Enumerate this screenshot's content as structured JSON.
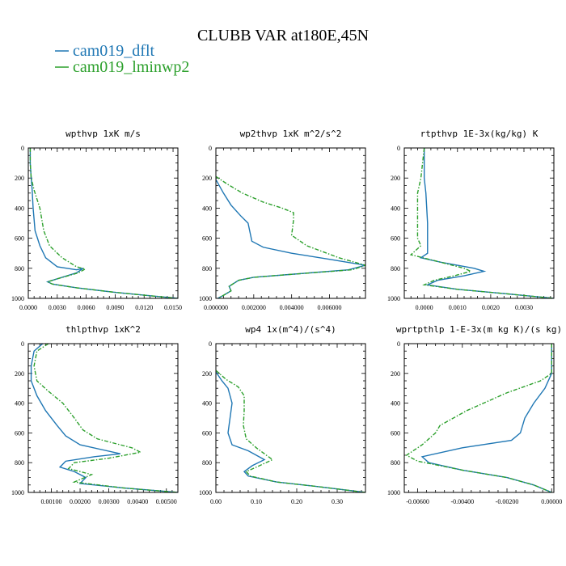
{
  "figure": {
    "title": "CLUBB VAR at180E,45N",
    "legend": [
      {
        "name": "cam019_dflt",
        "color": "#1f77b4",
        "dash": "solid"
      },
      {
        "name": "cam019_lminwp2",
        "color": "#2ca02c",
        "dash": "dashdot"
      }
    ]
  },
  "chart_data": [
    {
      "type": "line",
      "title": "wpthvp   1xK m/s",
      "xlim": [
        0,
        0.0155
      ],
      "ylim": [
        1000,
        0
      ],
      "xticks": [
        0,
        0.003,
        0.006,
        0.009,
        0.012,
        0.015
      ],
      "xticklabels": [
        "0.0000",
        "0.0030",
        "0.0060",
        "0.0090",
        "0.0120",
        "0.0150"
      ],
      "yticks": [
        0,
        200,
        400,
        600,
        800,
        1000
      ],
      "yticklabels": [
        "0",
        "200",
        "400",
        "600",
        "800",
        "1000"
      ],
      "series": [
        {
          "name": "cam019_dflt",
          "points": [
            [
              0.0002,
              0
            ],
            [
              0.0002,
              100
            ],
            [
              0.0003,
              200
            ],
            [
              0.0004,
              280
            ],
            [
              0.0005,
              400
            ],
            [
              0.0007,
              550
            ],
            [
              0.0012,
              650
            ],
            [
              0.0018,
              730
            ],
            [
              0.003,
              790
            ],
            [
              0.005,
              810
            ],
            [
              0.0057,
              800
            ],
            [
              0.005,
              830
            ],
            [
              0.003,
              870
            ],
            [
              0.002,
              890
            ],
            [
              0.0025,
              905
            ],
            [
              0.005,
              930
            ],
            [
              0.009,
              960
            ],
            [
              0.013,
              985
            ],
            [
              0.0155,
              1000
            ]
          ]
        },
        {
          "name": "cam019_lminwp2",
          "points": [
            [
              0.0002,
              0
            ],
            [
              0.0002,
              100
            ],
            [
              0.0003,
              200
            ],
            [
              0.0006,
              280
            ],
            [
              0.0012,
              400
            ],
            [
              0.0016,
              550
            ],
            [
              0.0022,
              650
            ],
            [
              0.0035,
              730
            ],
            [
              0.005,
              790
            ],
            [
              0.0059,
              805
            ],
            [
              0.0052,
              830
            ],
            [
              0.003,
              870
            ],
            [
              0.002,
              890
            ],
            [
              0.0025,
              905
            ],
            [
              0.005,
              930
            ],
            [
              0.009,
              960
            ],
            [
              0.013,
              985
            ],
            [
              0.0155,
              1000
            ]
          ]
        }
      ]
    },
    {
      "type": "line",
      "title": "wp2thvp   1xK m^2/s^2",
      "xlim": [
        0,
        0.0079
      ],
      "ylim": [
        1000,
        0
      ],
      "xticks": [
        0,
        0.002,
        0.004,
        0.006
      ],
      "xticklabels": [
        "0.000000",
        "0.002000",
        "0.004000",
        "0.006000"
      ],
      "yticks": [
        0,
        200,
        400,
        600,
        800,
        1000
      ],
      "yticklabels": [
        "0",
        "200",
        "400",
        "600",
        "800",
        "1000"
      ],
      "series": [
        {
          "name": "cam019_dflt",
          "points": [
            [
              0,
              210
            ],
            [
              0.0004,
              300
            ],
            [
              0.0008,
              380
            ],
            [
              0.0013,
              450
            ],
            [
              0.0017,
              500
            ],
            [
              0.0018,
              560
            ],
            [
              0.0019,
              620
            ],
            [
              0.0025,
              660
            ],
            [
              0.004,
              700
            ],
            [
              0.006,
              740
            ],
            [
              0.0079,
              780
            ],
            [
              0.007,
              810
            ],
            [
              0.004,
              840
            ],
            [
              0.002,
              860
            ],
            [
              0.0012,
              880
            ],
            [
              0.0007,
              920
            ],
            [
              0.0008,
              950
            ],
            [
              0.0004,
              980
            ],
            [
              0.0001,
              1000
            ]
          ]
        },
        {
          "name": "cam019_lminwp2",
          "points": [
            [
              0,
              190
            ],
            [
              0.0006,
              240
            ],
            [
              0.0014,
              300
            ],
            [
              0.0025,
              360
            ],
            [
              0.0035,
              400
            ],
            [
              0.0041,
              430
            ],
            [
              0.0041,
              480
            ],
            [
              0.004,
              580
            ],
            [
              0.0048,
              650
            ],
            [
              0.0065,
              730
            ],
            [
              0.0079,
              780
            ],
            [
              0.0072,
              810
            ],
            [
              0.004,
              840
            ],
            [
              0.002,
              860
            ],
            [
              0.0012,
              880
            ],
            [
              0.0007,
              920
            ],
            [
              0.0008,
              950
            ],
            [
              0.0004,
              980
            ],
            [
              0.0001,
              1000
            ]
          ]
        }
      ]
    },
    {
      "type": "line",
      "title": "rtpthvp   1E-3x(kg/kg) K",
      "xlim": [
        -0.0006,
        0.0039
      ],
      "ylim": [
        1000,
        0
      ],
      "xticks": [
        0,
        0.001,
        0.002,
        0.003
      ],
      "xticklabels": [
        "0.0000",
        "0.0010",
        "0.0020",
        "0.0030"
      ],
      "yticks": [
        0,
        200,
        400,
        600,
        800,
        1000
      ],
      "yticklabels": [
        "0",
        "200",
        "400",
        "600",
        "800",
        "1000"
      ],
      "series": [
        {
          "name": "cam019_dflt",
          "points": [
            [
              0,
              0
            ],
            [
              0,
              200
            ],
            [
              5e-05,
              300
            ],
            [
              0.0001,
              500
            ],
            [
              0.0001,
              650
            ],
            [
              0.0001,
              700
            ],
            [
              -0.0001,
              730
            ],
            [
              0.0005,
              760
            ],
            [
              0.0015,
              800
            ],
            [
              0.0018,
              820
            ],
            [
              0.0012,
              850
            ],
            [
              0.0004,
              880
            ],
            [
              0.0001,
              910
            ],
            [
              0.001,
              940
            ],
            [
              0.0025,
              970
            ],
            [
              0.0039,
              1000
            ]
          ]
        },
        {
          "name": "cam019_lminwp2",
          "points": [
            [
              0,
              0
            ],
            [
              -0.0001,
              200
            ],
            [
              -0.0002,
              300
            ],
            [
              -0.0002,
              400
            ],
            [
              -0.0002,
              500
            ],
            [
              -0.0002,
              600
            ],
            [
              -0.0001,
              650
            ],
            [
              -0.0004,
              710
            ],
            [
              0.0005,
              760
            ],
            [
              0.0012,
              800
            ],
            [
              0.0014,
              820
            ],
            [
              0.0009,
              850
            ],
            [
              0.0003,
              880
            ],
            [
              0,
              910
            ],
            [
              0.001,
              940
            ],
            [
              0.0025,
              970
            ],
            [
              0.0039,
              1000
            ]
          ]
        }
      ]
    },
    {
      "type": "line",
      "title": "thlpthvp   1xK^2",
      "xlim": [
        0.0002,
        0.0054
      ],
      "ylim": [
        1000,
        0
      ],
      "xticks": [
        0.001,
        0.002,
        0.003,
        0.004,
        0.005
      ],
      "xticklabels": [
        "0.00100",
        "0.00200",
        "0.00300",
        "0.00400",
        "0.00500"
      ],
      "yticks": [
        0,
        200,
        400,
        600,
        800,
        1000
      ],
      "yticklabels": [
        "0",
        "200",
        "400",
        "600",
        "800",
        "1000"
      ],
      "series": [
        {
          "name": "cam019_dflt",
          "points": [
            [
              0.0007,
              0
            ],
            [
              0.0004,
              50
            ],
            [
              0.0003,
              150
            ],
            [
              0.0003,
              250
            ],
            [
              0.0005,
              350
            ],
            [
              0.0008,
              450
            ],
            [
              0.0012,
              550
            ],
            [
              0.0015,
              620
            ],
            [
              0.002,
              680
            ],
            [
              0.0034,
              740
            ],
            [
              0.0025,
              760
            ],
            [
              0.0015,
              790
            ],
            [
              0.0013,
              830
            ],
            [
              0.0018,
              860
            ],
            [
              0.0022,
              900
            ],
            [
              0.002,
              940
            ],
            [
              0.0035,
              970
            ],
            [
              0.0054,
              1000
            ]
          ]
        },
        {
          "name": "cam019_lminwp2",
          "points": [
            [
              0.0009,
              0
            ],
            [
              0.0005,
              50
            ],
            [
              0.0004,
              150
            ],
            [
              0.0005,
              250
            ],
            [
              0.0009,
              320
            ],
            [
              0.0014,
              400
            ],
            [
              0.0018,
              500
            ],
            [
              0.0021,
              580
            ],
            [
              0.0026,
              640
            ],
            [
              0.0038,
              700
            ],
            [
              0.0041,
              730
            ],
            [
              0.003,
              770
            ],
            [
              0.0018,
              800
            ],
            [
              0.0016,
              840
            ],
            [
              0.0024,
              880
            ],
            [
              0.0018,
              930
            ],
            [
              0.0035,
              970
            ],
            [
              0.0054,
              1000
            ]
          ]
        }
      ]
    },
    {
      "type": "line",
      "title": "wp4   1x(m^4)/(s^4)",
      "xlim": [
        0,
        0.37
      ],
      "ylim": [
        1000,
        0
      ],
      "xticks": [
        0,
        0.1,
        0.2,
        0.3
      ],
      "xticklabels": [
        "0.00",
        "0.10",
        "0.20",
        "0.30"
      ],
      "yticks": [
        0,
        200,
        400,
        600,
        800,
        1000
      ],
      "yticklabels": [
        "0",
        "200",
        "400",
        "600",
        "800",
        "1000"
      ],
      "series": [
        {
          "name": "cam019_dflt",
          "points": [
            [
              0,
              190
            ],
            [
              0.015,
              250
            ],
            [
              0.03,
              300
            ],
            [
              0.04,
              400
            ],
            [
              0.035,
              500
            ],
            [
              0.03,
              600
            ],
            [
              0.04,
              680
            ],
            [
              0.08,
              720
            ],
            [
              0.12,
              780
            ],
            [
              0.09,
              820
            ],
            [
              0.07,
              860
            ],
            [
              0.08,
              890
            ],
            [
              0.15,
              930
            ],
            [
              0.25,
              960
            ],
            [
              0.37,
              1000
            ]
          ]
        },
        {
          "name": "cam019_lminwp2",
          "points": [
            [
              0,
              180
            ],
            [
              0.025,
              240
            ],
            [
              0.055,
              290
            ],
            [
              0.07,
              350
            ],
            [
              0.07,
              450
            ],
            [
              0.068,
              550
            ],
            [
              0.075,
              640
            ],
            [
              0.1,
              700
            ],
            [
              0.14,
              780
            ],
            [
              0.1,
              830
            ],
            [
              0.075,
              860
            ],
            [
              0.085,
              890
            ],
            [
              0.15,
              930
            ],
            [
              0.25,
              960
            ],
            [
              0.37,
              1000
            ]
          ]
        }
      ]
    },
    {
      "type": "line",
      "title": "wprtpthlp   1-E-3x(m kg K)/(s kg)",
      "xlim": [
        -0.0066,
        0.0001
      ],
      "ylim": [
        1000,
        0
      ],
      "xticks": [
        -0.006,
        -0.004,
        -0.002,
        0
      ],
      "xticklabels": [
        "-0.00600",
        "-0.00400",
        "-0.00200",
        "0.00000"
      ],
      "yticks": [
        0,
        200,
        400,
        600,
        800,
        1000
      ],
      "yticklabels": [
        "0",
        "200",
        "400",
        "600",
        "800",
        "1000"
      ],
      "series": [
        {
          "name": "cam019_dflt",
          "points": [
            [
              0,
              0
            ],
            [
              0,
              100
            ],
            [
              0,
              200
            ],
            [
              -0.0003,
              300
            ],
            [
              -0.0008,
              400
            ],
            [
              -0.0012,
              500
            ],
            [
              -0.0014,
              600
            ],
            [
              -0.0018,
              650
            ],
            [
              -0.004,
              700
            ],
            [
              -0.0058,
              760
            ],
            [
              -0.0055,
              800
            ],
            [
              -0.004,
              850
            ],
            [
              -0.002,
              900
            ],
            [
              -0.0008,
              950
            ],
            [
              0,
              1000
            ]
          ]
        },
        {
          "name": "cam019_lminwp2",
          "points": [
            [
              0,
              0
            ],
            [
              0,
              100
            ],
            [
              0,
              200
            ],
            [
              -0.0005,
              250
            ],
            [
              -0.002,
              330
            ],
            [
              -0.0038,
              450
            ],
            [
              -0.005,
              550
            ],
            [
              -0.0052,
              600
            ],
            [
              -0.0058,
              680
            ],
            [
              -0.0065,
              750
            ],
            [
              -0.006,
              790
            ],
            [
              -0.004,
              850
            ],
            [
              -0.002,
              900
            ],
            [
              -0.0008,
              950
            ],
            [
              0,
              1000
            ]
          ]
        }
      ]
    }
  ]
}
